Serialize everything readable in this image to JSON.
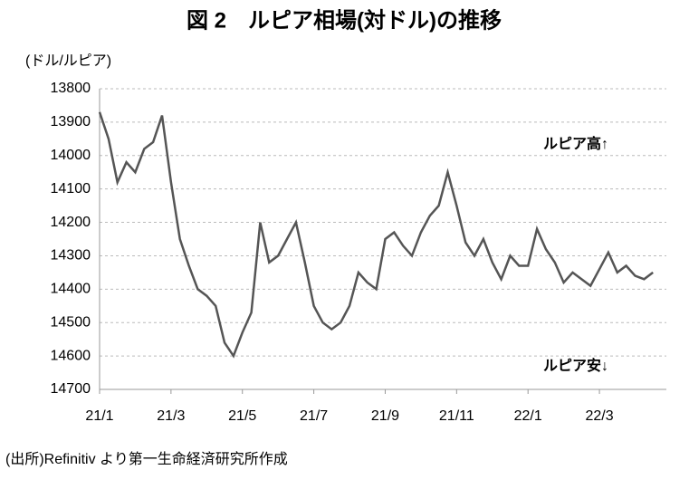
{
  "chart_data": {
    "type": "line",
    "title": "図 2　ルピア相場(対ドル)の推移",
    "y_label": "(ドル/ルピア)",
    "annotations": [
      "ルピア高↑",
      "ルピア安↓"
    ],
    "source": "(出所)Refinitiv より第一生命経済研究所作成",
    "categories": [
      "21/1",
      null,
      null,
      null,
      null,
      null,
      null,
      null,
      "21/3",
      null,
      null,
      null,
      null,
      null,
      null,
      null,
      "21/5",
      null,
      null,
      null,
      null,
      null,
      null,
      null,
      "21/7",
      null,
      null,
      null,
      null,
      null,
      null,
      null,
      "21/9",
      null,
      null,
      null,
      null,
      null,
      null,
      null,
      "21/11",
      null,
      null,
      null,
      null,
      null,
      null,
      null,
      "22/1",
      null,
      null,
      null,
      null,
      null,
      null,
      null,
      "22/3",
      null,
      null,
      null,
      null,
      null,
      null
    ],
    "series": [
      {
        "name": "ドル/ルピア",
        "color": "#555555",
        "values": [
          13870,
          13950,
          14080,
          14020,
          14050,
          13980,
          13960,
          13880,
          14080,
          14250,
          14330,
          14400,
          14420,
          14450,
          14560,
          14600,
          14530,
          14470,
          14200,
          14320,
          14300,
          14250,
          14200,
          14320,
          14450,
          14500,
          14520,
          14500,
          14450,
          14350,
          14380,
          14400,
          14250,
          14230,
          14270,
          14300,
          14230,
          14180,
          14150,
          14050,
          14150,
          14260,
          14300,
          14250,
          14320,
          14370,
          14300,
          14330,
          14330,
          14220,
          14280,
          14320,
          14380,
          14350,
          14370,
          14390,
          14340,
          14290,
          14350,
          14330,
          14360,
          14370,
          14350
        ]
      }
    ],
    "ylim": [
      13800,
      14700
    ],
    "y_inverted": true,
    "yticks": [
      13800,
      13900,
      14000,
      14100,
      14200,
      14300,
      14400,
      14500,
      14600,
      14700
    ],
    "grid": true,
    "title_color": "#1f3fbf"
  }
}
